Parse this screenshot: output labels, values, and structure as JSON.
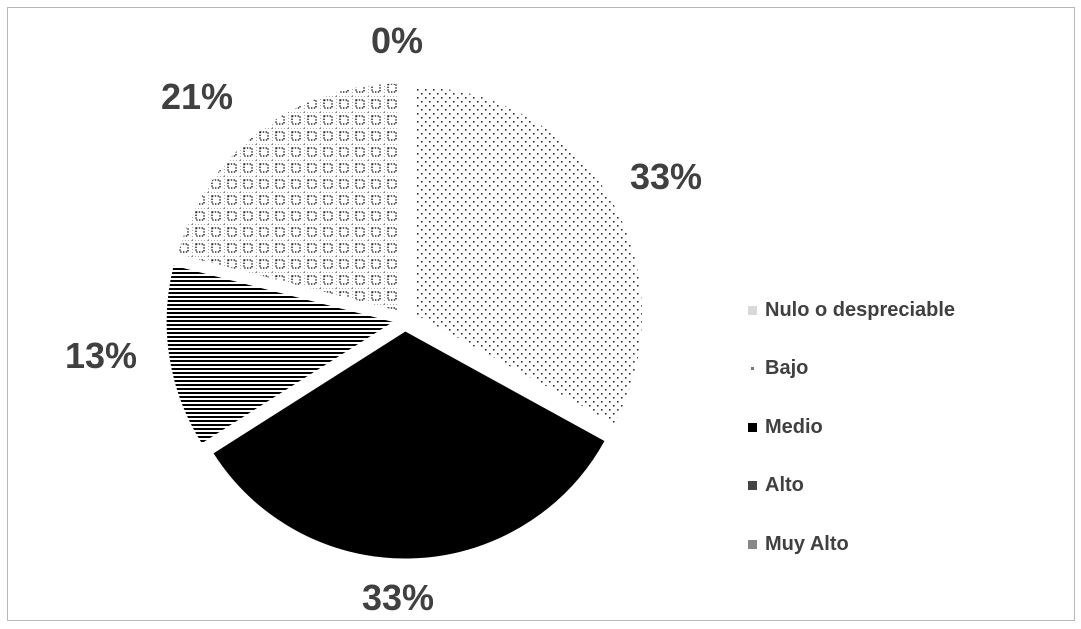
{
  "chart_data": {
    "type": "pie",
    "categories": [
      "Nulo o despreciable",
      "Bajo",
      "Medio",
      "Alto",
      "Muy Alto"
    ],
    "values": [
      0,
      33,
      33,
      13,
      21
    ],
    "data_labels": [
      "0%",
      "33%",
      "33%",
      "13%",
      "21%"
    ],
    "title": "",
    "legend_position": "right",
    "exploded": true
  }
}
